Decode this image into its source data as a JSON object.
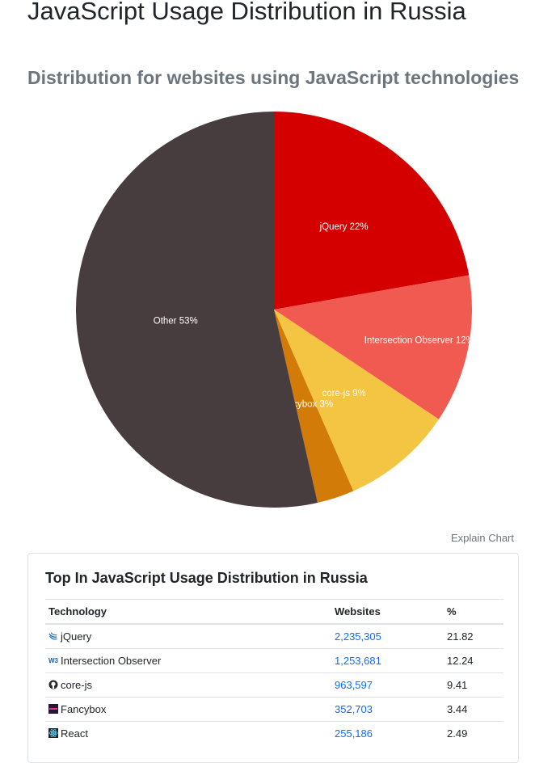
{
  "header": {
    "title": "JavaScript Usage Distribution in Russia",
    "subtitle": "Distribution for websites using JavaScript technologies"
  },
  "chart_data": {
    "type": "pie",
    "title": "JavaScript Usage Distribution in Russia",
    "subtitle": "Distribution for websites using JavaScript technologies",
    "slices": [
      {
        "label": "jQuery",
        "value": 22,
        "color": "#d40000"
      },
      {
        "label": "Intersection Observer",
        "value": 12,
        "color": "#f05a50"
      },
      {
        "label": "core-js",
        "value": 9,
        "color": "#f4c542"
      },
      {
        "label": "Fancybox",
        "value": 3,
        "color": "#d37b08"
      },
      {
        "label": "Other",
        "value": 53,
        "color": "#473c3e"
      }
    ]
  },
  "explain_chart_label": "Explain Chart",
  "table": {
    "title": "Top In JavaScript Usage Distribution in Russia",
    "headers": {
      "technology": "Technology",
      "websites": "Websites",
      "percent": "%"
    },
    "rows": [
      {
        "name": "jQuery",
        "websites": "2,235,305",
        "percent": "21.82",
        "icon": "jquery-icon"
      },
      {
        "name": "Intersection Observer",
        "websites": "1,253,681",
        "percent": "12.24",
        "icon": "w3c-icon"
      },
      {
        "name": "core-js",
        "websites": "963,597",
        "percent": "9.41",
        "icon": "github-icon"
      },
      {
        "name": "Fancybox",
        "websites": "352,703",
        "percent": "3.44",
        "icon": "fancybox-icon"
      },
      {
        "name": "React",
        "websites": "255,186",
        "percent": "2.49",
        "icon": "react-icon"
      }
    ]
  }
}
